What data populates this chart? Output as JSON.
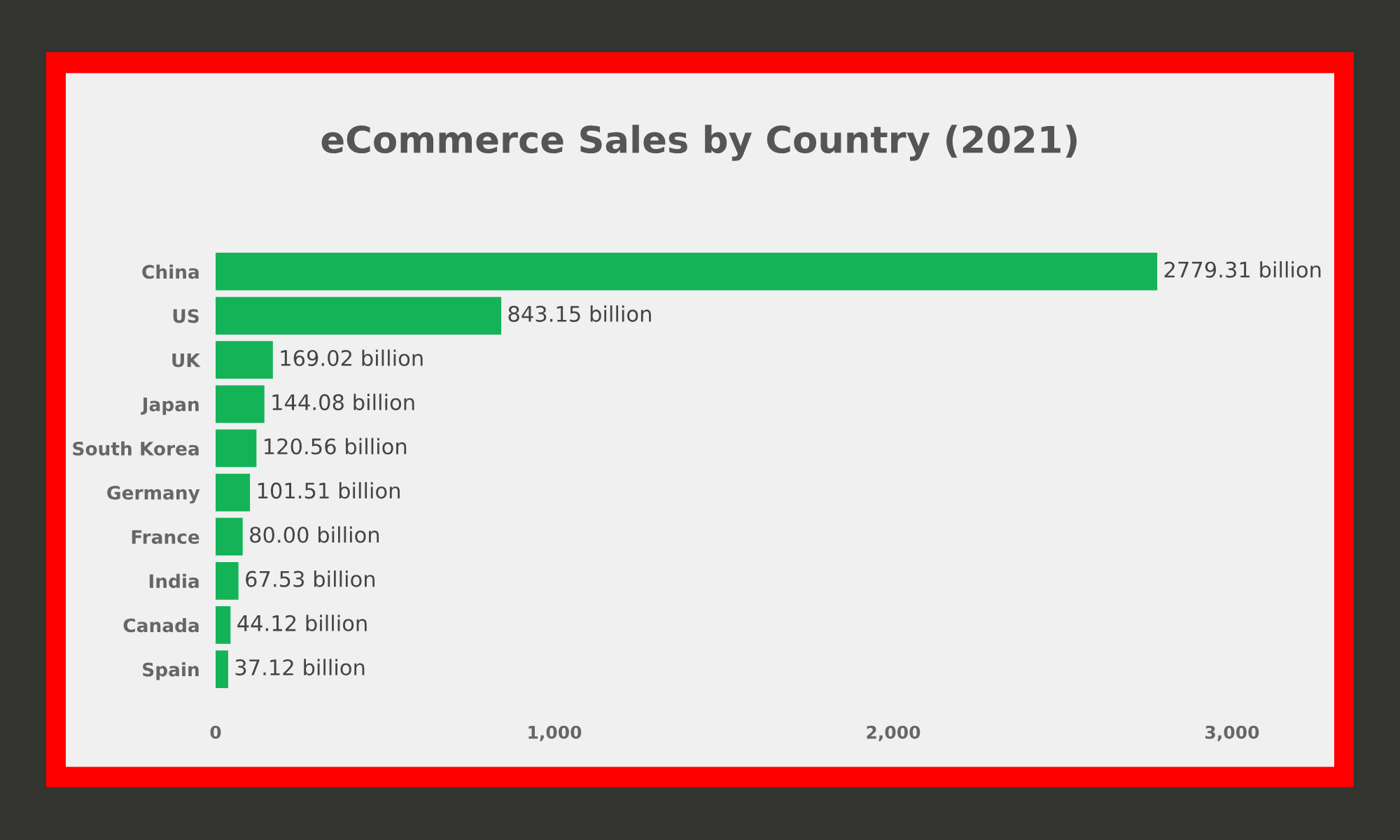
{
  "chart_data": {
    "type": "bar",
    "orientation": "horizontal",
    "title": "eCommerce Sales by Country (2021)",
    "categories": [
      "China",
      "US",
      "UK",
      "Japan",
      "South Korea",
      "Germany",
      "France",
      "India",
      "Canada",
      "Spain"
    ],
    "values": [
      2779.31,
      843.15,
      169.02,
      144.08,
      120.56,
      101.51,
      80.0,
      67.53,
      44.12,
      37.12
    ],
    "value_labels": [
      "2779.31 billion",
      "843.15 billion",
      "169.02 billion",
      "144.08 billion",
      "120.56 billion",
      "101.51 billion",
      "80.00 billion",
      "67.53 billion",
      "44.12 billion",
      "37.12 billion"
    ],
    "color": "#15b358",
    "xlim": [
      0,
      3000
    ],
    "xticks": [
      0,
      {
        "value": 1000,
        "label": "1,000"
      },
      {
        "value": 2000,
        "label": "2,000"
      },
      {
        "value": 3000,
        "label": "3,000"
      }
    ],
    "grid": false
  }
}
